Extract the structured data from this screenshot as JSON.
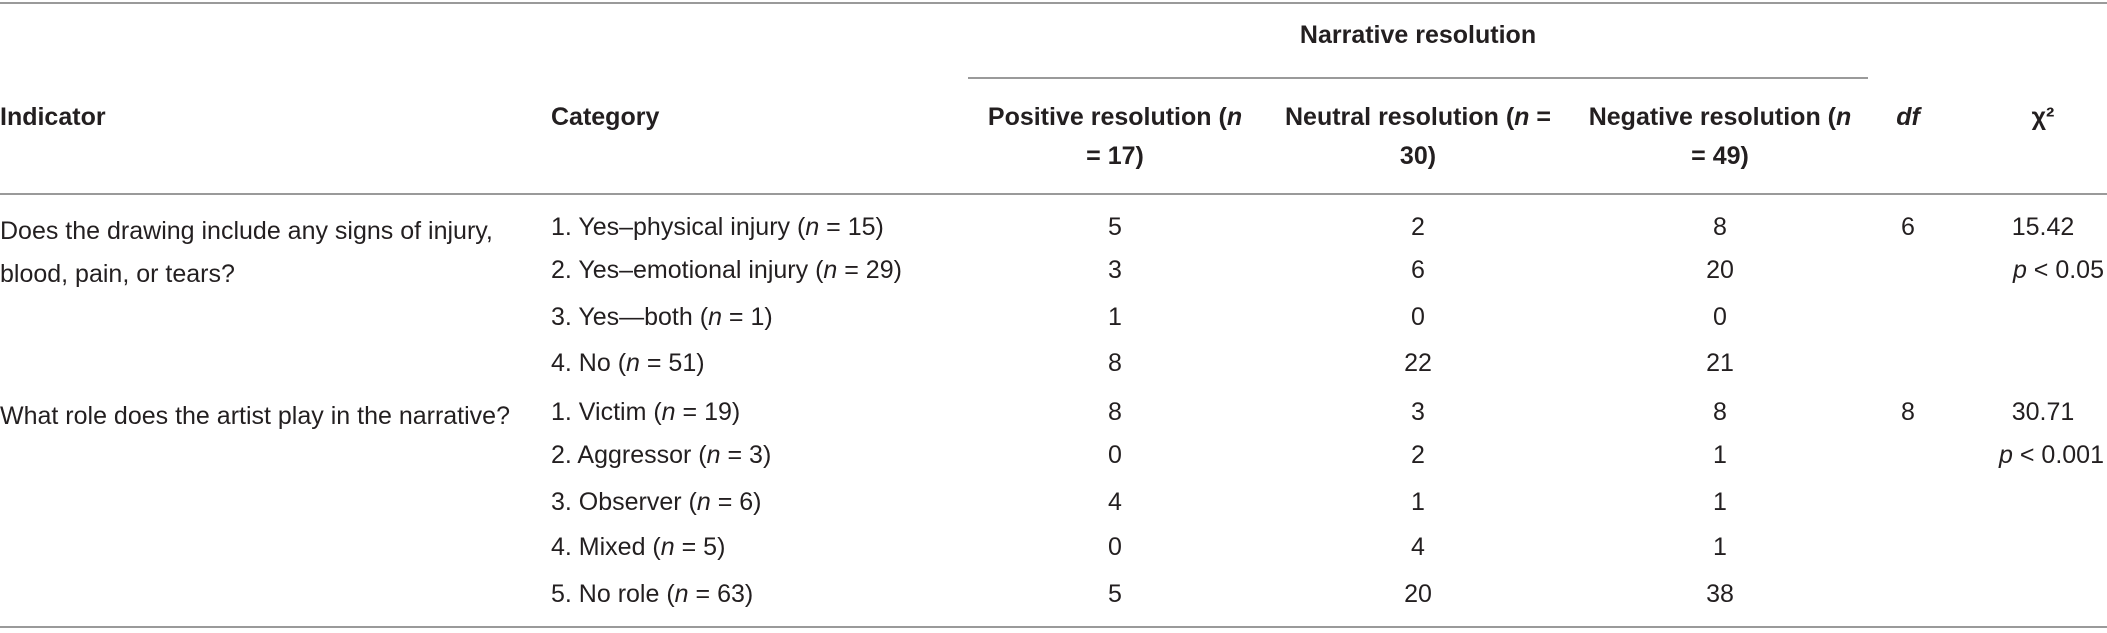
{
  "table": {
    "group_header": "Narrative resolution",
    "headers": [
      "Indicator",
      "Category",
      "Positive resolution (n = 17)",
      "Neutral resolution (n = 30)",
      "Negative resolution (n = 49)",
      "df",
      "χ²"
    ],
    "groups": [
      {
        "indicator": "Does the drawing include any signs of injury, blood, pain, or tears?",
        "df": 6,
        "chi2": 15.42,
        "p": "p < 0.05",
        "rows": [
          {
            "category": "1. Yes–physical injury (n = 15)",
            "values": [
              5,
              2,
              8
            ]
          },
          {
            "category": "2. Yes–emotional injury (n = 29)",
            "values": [
              3,
              6,
              20
            ]
          },
          {
            "category": "3. Yes—both (n = 1)",
            "values": [
              1,
              0,
              0
            ]
          },
          {
            "category": "4. No (n = 51)",
            "values": [
              8,
              22,
              21
            ]
          }
        ]
      },
      {
        "indicator": "What role does the artist play in the narrative?",
        "df": 8,
        "chi2": 30.71,
        "p": "p < 0.001",
        "rows": [
          {
            "category": "1. Victim (n = 19)",
            "values": [
              8,
              3,
              8
            ]
          },
          {
            "category": "2. Aggressor (n = 3)",
            "values": [
              0,
              2,
              1
            ]
          },
          {
            "category": "3. Observer (n = 6)",
            "values": [
              4,
              1,
              1
            ]
          },
          {
            "category": "4. Mixed (n = 5)",
            "values": [
              0,
              4,
              1
            ]
          },
          {
            "category": "5. No role (n = 63)",
            "values": [
              5,
              20,
              38
            ]
          }
        ]
      }
    ]
  }
}
